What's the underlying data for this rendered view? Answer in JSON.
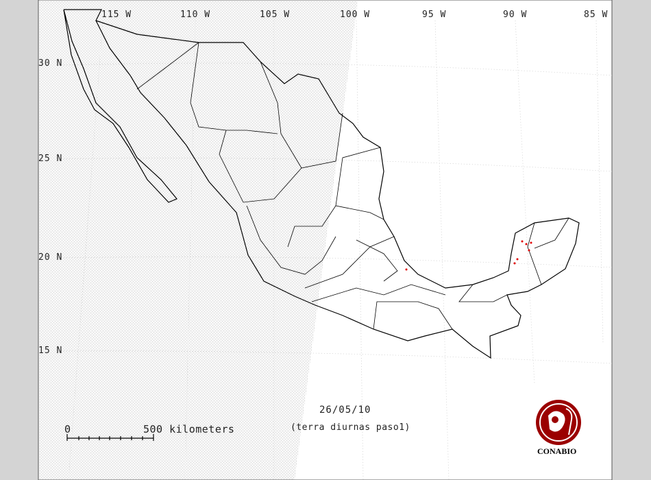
{
  "map": {
    "longitude_labels": [
      "115 W",
      "110 W",
      "105 W",
      "100 W",
      "95 W",
      "90 W",
      "85 W"
    ],
    "latitude_labels": [
      "30 N",
      "25 N",
      "20 N",
      "15 N"
    ],
    "date": "26/05/10",
    "subtitle": "(terra diurnas paso1)",
    "scale_bar": {
      "start_label": "0",
      "end_label": "500 kilometers"
    },
    "logo": {
      "text": "CONABIO",
      "color": "#9b0000"
    },
    "hotspot_color": "#e00000",
    "hatched_region": "left (outside satellite swath)"
  }
}
